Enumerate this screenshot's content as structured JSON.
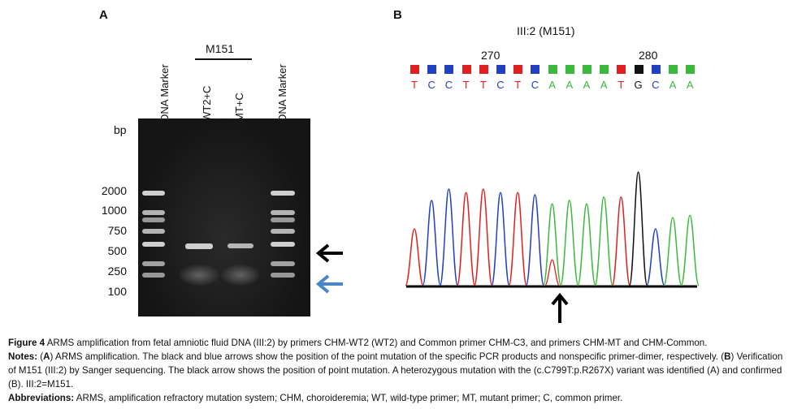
{
  "panel_a": {
    "letter": "A",
    "group_label": "M151",
    "lanes": [
      "DNA Marker",
      "WT2+C",
      "MT+C",
      "DNA Marker"
    ],
    "bp_label": "bp",
    "bp_values": [
      "2000",
      "1000",
      "750",
      "500",
      "250",
      "100"
    ],
    "arrow_colors": {
      "black": "#000000",
      "blue": "#4a86c5"
    }
  },
  "panel_b": {
    "letter": "B",
    "title": "III:2 (M151)",
    "pos_labels": [
      "270",
      "280"
    ],
    "sequence": [
      "T",
      "C",
      "C",
      "T",
      "T",
      "C",
      "T",
      "C",
      "A",
      "A",
      "A",
      "A",
      "T",
      "G",
      "C",
      "A",
      "A"
    ],
    "base_colors": {
      "A": "#3cb83c",
      "C": "#2040c0",
      "G": "#111111",
      "T": "#e02020"
    }
  },
  "caption": {
    "fig_label": "Figure 4",
    "fig_text": " ARMS amplification from fetal amniotic fluid DNA (III:2) by primers CHM-WT2 (WT2) and Common primer CHM-C3, and primers CHM-MT and CHM-Common.",
    "notes_label": "Notes:",
    "notes_text_1": " (",
    "notes_a": "A",
    "notes_text_2": ") ARMS amplification. The black and blue arrows show the position of the point mutation of the specific PCR products and nonspecific primer-dimer, respectively. (",
    "notes_b": "B",
    "notes_text_3": ") Verification of M151 (III:2) by Sanger sequencing. The black arrow shows the position of point mutation. A heterozygous mutation with the (c.C799T:p.R267X) variant was identified (A) and confirmed (B). III:2=M151.",
    "abbr_label": "Abbreviations:",
    "abbr_text": " ARMS, amplification refractory mutation system; CHM, choroideremia; WT, wild-type primer; MT, mutant primer; C, common primer."
  }
}
